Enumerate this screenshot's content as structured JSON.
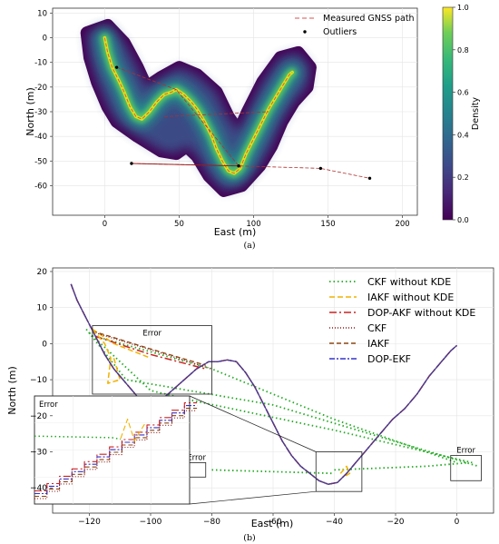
{
  "chart_data": [
    {
      "type": "density-map",
      "panel_label": "(a)",
      "xlabel": "East (m)",
      "ylabel": "North (m)",
      "xlim": [
        -35,
        210
      ],
      "ylim": [
        -72,
        12
      ],
      "xticks": [
        0,
        50,
        100,
        150,
        200
      ],
      "yticks": [
        10,
        0,
        -10,
        -20,
        -30,
        -40,
        -50,
        -60
      ],
      "legend": [
        "Measured GNSS path",
        "Outliers"
      ],
      "colorbar": {
        "label": "Density",
        "ticks": [
          0.0,
          0.2,
          0.4,
          0.6,
          0.8,
          1.0
        ]
      },
      "density_region": [
        [
          -12,
          2
        ],
        [
          -10,
          -8
        ],
        [
          -5,
          -18
        ],
        [
          2,
          -28
        ],
        [
          8,
          -34
        ],
        [
          22,
          -40
        ],
        [
          38,
          -46
        ],
        [
          48,
          -47
        ],
        [
          55,
          -44
        ],
        [
          62,
          -48
        ],
        [
          70,
          -56
        ],
        [
          80,
          -62
        ],
        [
          92,
          -60
        ],
        [
          104,
          -52
        ],
        [
          112,
          -44
        ],
        [
          119,
          -34
        ],
        [
          127,
          -26
        ],
        [
          136,
          -20
        ],
        [
          138,
          -12
        ],
        [
          130,
          -6
        ],
        [
          118,
          -8
        ],
        [
          106,
          -18
        ],
        [
          96,
          -30
        ],
        [
          90,
          -38
        ],
        [
          83,
          -32
        ],
        [
          75,
          -22
        ],
        [
          62,
          -15
        ],
        [
          50,
          -12
        ],
        [
          38,
          -16
        ],
        [
          28,
          -20
        ],
        [
          22,
          -12
        ],
        [
          13,
          -2
        ],
        [
          2,
          5
        ]
      ],
      "gnss_path": [
        [
          0,
          0
        ],
        [
          2,
          -6
        ],
        [
          5,
          -12
        ],
        [
          10,
          -18
        ],
        [
          13,
          -22
        ],
        [
          17,
          -28
        ],
        [
          21,
          -32
        ],
        [
          25,
          -33
        ],
        [
          30,
          -30
        ],
        [
          35,
          -26
        ],
        [
          40,
          -23
        ],
        [
          45,
          -22
        ],
        [
          48,
          -21
        ],
        [
          53,
          -23
        ],
        [
          58,
          -26
        ],
        [
          62,
          -29
        ],
        [
          67,
          -34
        ],
        [
          72,
          -40
        ],
        [
          75,
          -45
        ],
        [
          79,
          -50
        ],
        [
          83,
          -54
        ],
        [
          87,
          -55
        ],
        [
          91,
          -53
        ],
        [
          95,
          -47
        ],
        [
          100,
          -41
        ],
        [
          105,
          -35
        ],
        [
          110,
          -29
        ],
        [
          114,
          -25
        ],
        [
          118,
          -21
        ],
        [
          121,
          -18
        ],
        [
          124,
          -15
        ],
        [
          126,
          -14
        ]
      ],
      "outlier_lines": [
        [
          [
            8,
            -12
          ],
          [
            48,
            -21
          ],
          [
            90,
            -52
          ],
          [
            145,
            -53
          ],
          [
            178,
            -57
          ]
        ],
        [
          [
            18,
            -51
          ],
          [
            90,
            -52
          ]
        ],
        [
          [
            40,
            -32
          ],
          [
            110,
            -30
          ]
        ]
      ],
      "outliers": [
        [
          8,
          -12
        ],
        [
          18,
          -51
        ],
        [
          90,
          -52
        ],
        [
          145,
          -53
        ],
        [
          178,
          -57
        ]
      ]
    },
    {
      "type": "line",
      "panel_label": "(b)",
      "xlabel": "East (m)",
      "ylabel": "North (m)",
      "xlim": [
        -132,
        12
      ],
      "ylim": [
        -47,
        21
      ],
      "xticks": [
        -120,
        -100,
        -80,
        -60,
        -40,
        -20,
        0
      ],
      "yticks": [
        20,
        10,
        0,
        -10,
        -20,
        -30,
        -40
      ],
      "series": [
        {
          "name": "CKF without KDE",
          "color": "#22aa22",
          "dash": "1.5,3",
          "width": 1.8
        },
        {
          "name": "IAKF without KDE",
          "color": "#f2b200",
          "dash": "6,3",
          "width": 1.5
        },
        {
          "name": "DOP-AKF without KDE",
          "color": "#cc2222",
          "dash": "8,3,2,3",
          "width": 1.5
        },
        {
          "name": "CKF",
          "color": "#8b1a1a",
          "dash": "1,2",
          "width": 1.4
        },
        {
          "name": "IAKF",
          "color": "#8b4513",
          "dash": "5,3",
          "width": 1.3
        },
        {
          "name": "DOP-EKF",
          "color": "#3333cc",
          "dash": "6,2,2,2",
          "width": 1.3
        }
      ],
      "trajectory": [
        [
          -126,
          16.5
        ],
        [
          -124,
          12
        ],
        [
          -121,
          7
        ],
        [
          -118,
          2
        ],
        [
          -115,
          -3
        ],
        [
          -112,
          -7
        ],
        [
          -108,
          -11
        ],
        [
          -104,
          -15
        ],
        [
          -101,
          -17
        ],
        [
          -97,
          -16
        ],
        [
          -93,
          -13
        ],
        [
          -89,
          -10
        ],
        [
          -85,
          -7
        ],
        [
          -81,
          -5
        ],
        [
          -78,
          -5
        ],
        [
          -75,
          -4.5
        ],
        [
          -72,
          -5
        ],
        [
          -69,
          -8
        ],
        [
          -66,
          -12
        ],
        [
          -63,
          -17
        ],
        [
          -60,
          -22
        ],
        [
          -57,
          -27
        ],
        [
          -54,
          -31
        ],
        [
          -51,
          -34
        ],
        [
          -48,
          -36
        ],
        [
          -45,
          -38
        ],
        [
          -42,
          -39
        ],
        [
          -39,
          -38.5
        ],
        [
          -36,
          -36
        ],
        [
          -33,
          -33
        ],
        [
          -29,
          -29
        ],
        [
          -25,
          -25
        ],
        [
          -21,
          -21
        ],
        [
          -17,
          -18
        ],
        [
          -13,
          -14
        ],
        [
          -9,
          -9
        ],
        [
          -5,
          -5
        ],
        [
          -2,
          -2
        ],
        [
          0,
          -0.5
        ]
      ],
      "ckf_without_kde": [
        [
          [
            -121,
            4
          ],
          [
            -108,
            -10
          ],
          [
            -60,
            -17
          ],
          [
            7,
            -34
          ]
        ],
        [
          [
            -120,
            3
          ],
          [
            -100,
            -13
          ],
          [
            -85,
            -16
          ],
          [
            -40,
            -24
          ],
          [
            5,
            -33
          ]
        ],
        [
          [
            -118,
            2
          ],
          [
            -80,
            -7
          ],
          [
            -40,
            -21
          ],
          [
            0,
            -33
          ]
        ],
        [
          [
            -80,
            -35
          ],
          [
            -40,
            -36
          ]
        ],
        [
          [
            -40,
            -35
          ],
          [
            -10,
            -34
          ],
          [
            4,
            -33
          ]
        ]
      ],
      "error_spikes": [
        [
          [
            -119,
            4
          ],
          [
            -115,
            0
          ],
          [
            -113,
            -4
          ],
          [
            -114,
            -11
          ],
          [
            -110,
            -10
          ],
          [
            -112,
            -4
          ]
        ],
        [
          [
            -38,
            -36
          ],
          [
            -36,
            -34
          ],
          [
            -35,
            -36
          ],
          [
            -37,
            -37
          ]
        ]
      ],
      "error_diagonals": [
        {
          "name": "DOP-AKF without KDE",
          "points": [
            [
              -118,
              2
            ],
            [
              -100,
              -3
            ],
            [
              -82,
              -7
            ]
          ]
        },
        {
          "name": "IAKF without KDE",
          "points": [
            [
              -119,
              4
            ],
            [
              -112,
              0
            ],
            [
              -100,
              -4
            ]
          ]
        },
        {
          "name": "CKF",
          "points": [
            [
              -118,
              3
            ],
            [
              -95,
              -3
            ],
            [
              -80,
              -7
            ]
          ]
        },
        {
          "name": "IAKF",
          "points": [
            [
              -119,
              3.5
            ],
            [
              -98,
              -2
            ],
            [
              -82,
              -6
            ]
          ]
        }
      ],
      "error_label": "Error",
      "error_boxes": [
        [
          -119,
          -14,
          -80,
          5
        ],
        [
          -46,
          -41,
          -31,
          -30
        ],
        [
          -88,
          -37,
          -82,
          -33
        ],
        [
          -2,
          -38,
          8,
          -31
        ]
      ],
      "inset_label": "Error"
    }
  ]
}
